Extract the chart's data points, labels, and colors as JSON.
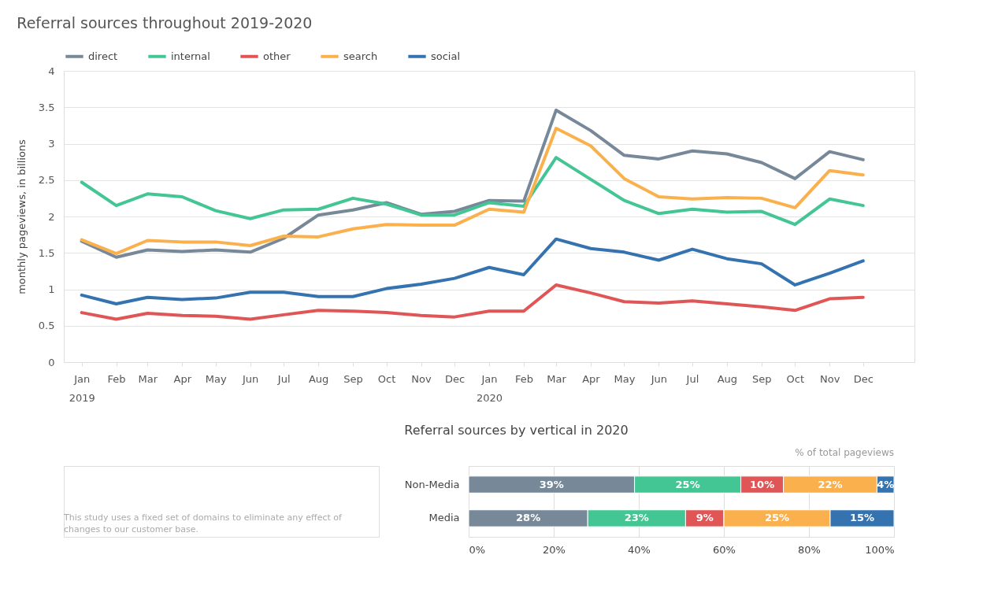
{
  "chart_data": [
    {
      "type": "line",
      "title": "Referral sources throughout 2019-2020",
      "ylabel": "monthly pageviews, in billions",
      "x": [
        "2019-01",
        "2019-02",
        "2019-03",
        "2019-04",
        "2019-05",
        "2019-06",
        "2019-07",
        "2019-08",
        "2019-09",
        "2019-10",
        "2019-11",
        "2019-12",
        "2020-01",
        "2020-02",
        "2020-03",
        "2020-04",
        "2020-05",
        "2020-06",
        "2020-07",
        "2020-08",
        "2020-09",
        "2020-10",
        "2020-11",
        "2020-12"
      ],
      "xlim": [
        "2018-12-16",
        "2021-01-16"
      ],
      "xticks": [
        {
          "value": "2019-01",
          "label": "Jan\n2019"
        },
        {
          "value": "2019-02",
          "label": "Feb"
        },
        {
          "value": "2019-03",
          "label": "Mar"
        },
        {
          "value": "2019-04",
          "label": "Apr"
        },
        {
          "value": "2019-05",
          "label": "May"
        },
        {
          "value": "2019-06",
          "label": "Jun"
        },
        {
          "value": "2019-07",
          "label": "Jul"
        },
        {
          "value": "2019-08",
          "label": "Aug"
        },
        {
          "value": "2019-09",
          "label": "Sep"
        },
        {
          "value": "2019-10",
          "label": "Oct"
        },
        {
          "value": "2019-11",
          "label": "Nov"
        },
        {
          "value": "2019-12",
          "label": "Dec"
        },
        {
          "value": "2020-01",
          "label": "Jan\n2020"
        },
        {
          "value": "2020-02",
          "label": "Feb"
        },
        {
          "value": "2020-03",
          "label": "Mar"
        },
        {
          "value": "2020-04",
          "label": "Apr"
        },
        {
          "value": "2020-05",
          "label": "May"
        },
        {
          "value": "2020-06",
          "label": "Jun"
        },
        {
          "value": "2020-07",
          "label": "Jul"
        },
        {
          "value": "2020-08",
          "label": "Aug"
        },
        {
          "value": "2020-09",
          "label": "Sep"
        },
        {
          "value": "2020-10",
          "label": "Oct"
        },
        {
          "value": "2020-11",
          "label": "Nov"
        },
        {
          "value": "2020-12",
          "label": "Dec"
        }
      ],
      "ylim": [
        0,
        4
      ],
      "yticks": [
        0,
        0.5,
        1,
        1.5,
        2,
        2.5,
        3,
        3.5,
        4
      ],
      "grid": "y",
      "legend": "top left",
      "series": [
        {
          "name": "direct",
          "color": "#778899",
          "values": [
            1.66,
            1.44,
            1.54,
            1.52,
            1.54,
            1.51,
            1.7,
            2.02,
            2.09,
            2.19,
            2.03,
            2.07,
            2.22,
            2.21,
            3.46,
            3.18,
            2.84,
            2.79,
            2.9,
            2.86,
            2.74,
            2.52,
            2.89,
            2.78
          ]
        },
        {
          "name": "internal",
          "color": "#43c594",
          "values": [
            2.47,
            2.15,
            2.31,
            2.27,
            2.08,
            1.97,
            2.09,
            2.1,
            2.25,
            2.17,
            2.02,
            2.02,
            2.19,
            2.14,
            2.81,
            2.51,
            2.22,
            2.04,
            2.1,
            2.06,
            2.07,
            1.89,
            2.24,
            2.15
          ]
        },
        {
          "name": "other",
          "color": "#e05656",
          "values": [
            0.68,
            0.59,
            0.67,
            0.64,
            0.63,
            0.59,
            0.65,
            0.71,
            0.7,
            0.68,
            0.64,
            0.62,
            0.7,
            0.7,
            1.06,
            0.95,
            0.83,
            0.81,
            0.84,
            0.8,
            0.76,
            0.71,
            0.87,
            0.89
          ]
        },
        {
          "name": "search",
          "color": "#fbb04e",
          "values": [
            1.68,
            1.49,
            1.67,
            1.65,
            1.65,
            1.6,
            1.73,
            1.72,
            1.83,
            1.89,
            1.88,
            1.88,
            2.1,
            2.06,
            3.21,
            2.97,
            2.52,
            2.27,
            2.24,
            2.26,
            2.25,
            2.12,
            2.63,
            2.57
          ]
        },
        {
          "name": "social",
          "color": "#3473b0",
          "values": [
            0.92,
            0.8,
            0.89,
            0.86,
            0.88,
            0.96,
            0.96,
            0.9,
            0.9,
            1.01,
            1.07,
            1.15,
            1.3,
            1.2,
            1.69,
            1.56,
            1.51,
            1.4,
            1.55,
            1.42,
            1.35,
            1.06,
            1.22,
            1.39
          ]
        }
      ]
    },
    {
      "type": "bar",
      "orientation": "horizontal",
      "stacked": true,
      "title": "Referral sources by vertical in 2020",
      "categories": [
        "Non-Media",
        "Media"
      ],
      "xlim": [
        0,
        100
      ],
      "xticks": [
        {
          "value": 0,
          "label": "0%"
        },
        {
          "value": 20,
          "label": "20%"
        },
        {
          "value": 40,
          "label": "40%"
        },
        {
          "value": 60,
          "label": "60%"
        },
        {
          "value": 80,
          "label": "80%"
        },
        {
          "value": 100,
          "label": "100%"
        }
      ],
      "grid": "x",
      "annotations": [
        "% of total pageviews",
        "This study uses a fixed set of domains to eliminate any effect of changes to our customer base."
      ],
      "series": [
        {
          "color": "#778899",
          "values": [
            39,
            28
          ],
          "value_labels": [
            "39%",
            "28%"
          ]
        },
        {
          "color": "#43c594",
          "values": [
            25,
            23
          ],
          "value_labels": [
            "25%",
            "23%"
          ]
        },
        {
          "color": "#e05656",
          "values": [
            10,
            9
          ],
          "value_labels": [
            "10%",
            "9%"
          ]
        },
        {
          "color": "#fbb04e",
          "values": [
            22,
            25
          ],
          "value_labels": [
            "22%",
            "25%"
          ]
        },
        {
          "color": "#3473b0",
          "values": [
            4,
            15
          ],
          "value_labels": [
            "4%",
            "15%"
          ]
        }
      ]
    }
  ]
}
